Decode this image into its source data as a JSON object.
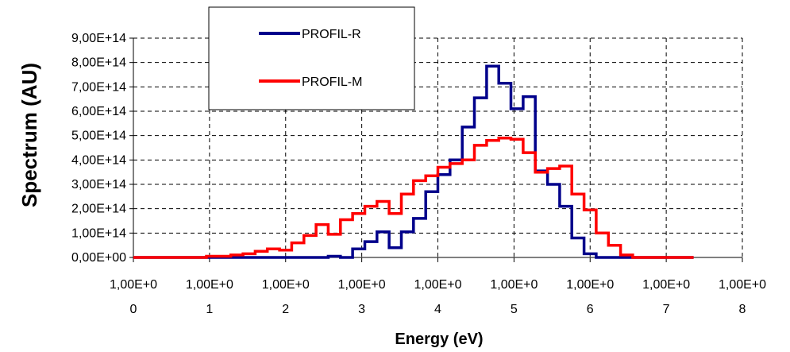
{
  "chart_data": {
    "type": "line",
    "step": true,
    "xlabel": "Energy (eV)",
    "ylabel": "Spectrum (AU)",
    "xlim": [
      0,
      8
    ],
    "ylim": [
      0,
      900000000000000.0
    ],
    "x_ticks": [
      0,
      1,
      2,
      3,
      4,
      5,
      6,
      7,
      8
    ],
    "x_tick_labels": [
      "0",
      "1",
      "2",
      "3",
      "4",
      "5",
      "6",
      "7",
      "8"
    ],
    "x_tick_labels_top": [
      "1,00E+0",
      "1,00E+0",
      "1,00E+0",
      "1,00E+0",
      "1,00E+0",
      "1,00E+0",
      "1,00E+0",
      "1,00E+0",
      "1,00E+0"
    ],
    "y_ticks": [
      0,
      100000000000000.0,
      200000000000000.0,
      300000000000000.0,
      400000000000000.0,
      500000000000000.0,
      600000000000000.0,
      700000000000000.0,
      800000000000000.0,
      900000000000000.0
    ],
    "y_tick_labels": [
      "0,00E+00",
      "1,00E+14",
      "2,00E+14",
      "3,00E+14",
      "4,00E+14",
      "5,00E+14",
      "6,00E+14",
      "7,00E+14",
      "8,00E+14",
      "9,00E+14"
    ],
    "grid": true,
    "legend_position": "top-left",
    "bin_edges": [
      0.0,
      0.16,
      0.32,
      0.48,
      0.64,
      0.8,
      0.96,
      1.12,
      1.28,
      1.44,
      1.6,
      1.76,
      1.92,
      2.08,
      2.24,
      2.4,
      2.56,
      2.72,
      2.88,
      3.04,
      3.2,
      3.36,
      3.52,
      3.68,
      3.84,
      4.0,
      4.16,
      4.32,
      4.48,
      4.64,
      4.8,
      4.96,
      5.12,
      5.28,
      5.44,
      5.6,
      5.76,
      5.92,
      6.08,
      6.24,
      6.4,
      6.56,
      6.72,
      6.88,
      7.04,
      7.2,
      7.36
    ],
    "series": [
      {
        "name": "PROFIL-R",
        "color": "#00008B",
        "values": [
          0,
          0,
          0,
          0,
          0,
          0,
          0,
          0,
          0,
          0,
          0,
          0,
          0,
          0,
          0,
          0,
          5000000000000.0,
          0,
          35000000000000.0,
          65000000000000.0,
          105000000000000.0,
          40000000000000.0,
          105000000000000.0,
          160000000000000.0,
          270000000000000.0,
          340000000000000.0,
          400000000000000.0,
          535000000000000.0,
          655000000000000.0,
          785000000000000.0,
          715000000000000.0,
          610000000000000.0,
          660000000000000.0,
          355000000000000.0,
          300000000000000.0,
          210000000000000.0,
          80000000000000.0,
          15000000000000.0,
          0,
          0,
          0,
          0,
          0,
          0,
          0,
          0
        ]
      },
      {
        "name": "PROFIL-M",
        "color": "#FF0000",
        "values": [
          0,
          0,
          0,
          0,
          0,
          0,
          5000000000000.0,
          5000000000000.0,
          10000000000000.0,
          15000000000000.0,
          25000000000000.0,
          35000000000000.0,
          30000000000000.0,
          60000000000000.0,
          90000000000000.0,
          135000000000000.0,
          95000000000000.0,
          155000000000000.0,
          180000000000000.0,
          210000000000000.0,
          230000000000000.0,
          180000000000000.0,
          260000000000000.0,
          315000000000000.0,
          335000000000000.0,
          370000000000000.0,
          385000000000000.0,
          400000000000000.0,
          460000000000000.0,
          480000000000000.0,
          490000000000000.0,
          485000000000000.0,
          430000000000000.0,
          350000000000000.0,
          365000000000000.0,
          375000000000000.0,
          260000000000000.0,
          195000000000000.0,
          100000000000000.0,
          50000000000000.0,
          10000000000000.0,
          0,
          0,
          0,
          0,
          0
        ]
      }
    ]
  }
}
